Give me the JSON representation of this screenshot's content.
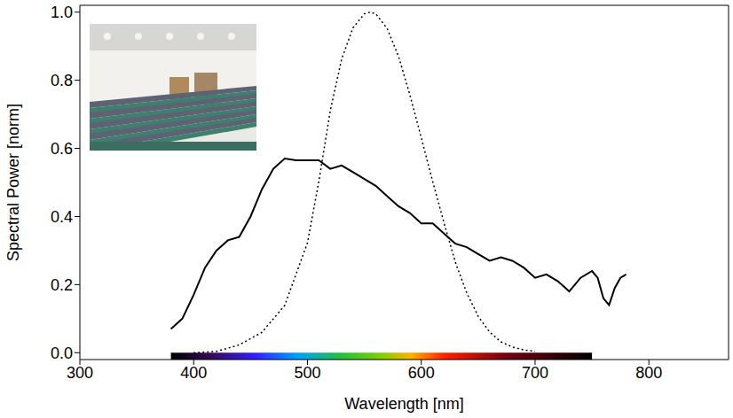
{
  "chart_data": {
    "type": "line",
    "x_label": "Wavelength [nm]",
    "y_label": "Spectral Power [norm]",
    "series": [
      {
        "x": [
          380,
          390,
          400,
          410,
          420,
          430,
          440,
          450,
          460,
          470,
          480,
          490,
          500,
          510,
          520,
          530,
          540,
          550,
          560,
          570,
          580,
          590,
          600,
          610,
          620,
          630,
          640,
          650,
          660,
          670,
          680,
          690,
          700,
          710,
          720,
          730,
          740,
          750,
          755,
          760,
          765,
          770,
          775,
          780
        ],
        "values": [
          0.07,
          0.1,
          0.17,
          0.25,
          0.3,
          0.33,
          0.34,
          0.4,
          0.48,
          0.54,
          0.57,
          0.565,
          0.565,
          0.565,
          0.54,
          0.55,
          0.53,
          0.51,
          0.49,
          0.46,
          0.43,
          0.41,
          0.38,
          0.38,
          0.35,
          0.32,
          0.31,
          0.29,
          0.27,
          0.28,
          0.27,
          0.25,
          0.22,
          0.23,
          0.21,
          0.18,
          0.22,
          0.24,
          0.22,
          0.16,
          0.14,
          0.19,
          0.22,
          0.23
        ],
        "color": "#000000",
        "line_style": "solid"
      },
      {
        "x": [
          400,
          420,
          440,
          460,
          480,
          500,
          510,
          520,
          530,
          540,
          550,
          555,
          560,
          570,
          580,
          590,
          600,
          610,
          620,
          630,
          640,
          650,
          660,
          670,
          680,
          690,
          700
        ],
        "values": [
          0.0,
          0.004,
          0.023,
          0.06,
          0.139,
          0.323,
          0.503,
          0.71,
          0.862,
          0.954,
          0.995,
          1.0,
          0.995,
          0.952,
          0.87,
          0.757,
          0.631,
          0.503,
          0.381,
          0.265,
          0.175,
          0.107,
          0.061,
          0.032,
          0.017,
          0.008,
          0.004
        ],
        "color": "#000000",
        "line_style": "dotted"
      }
    ],
    "xlim": [
      300,
      870
    ],
    "xticks": [
      300,
      400,
      500,
      600,
      700,
      800
    ],
    "ylim": [
      -0.02,
      1.02
    ],
    "yticks": [
      {
        "value": 0,
        "label": "0.0"
      },
      {
        "value": 0.2,
        "label": "0.2"
      },
      {
        "value": 0.4,
        "label": "0.4"
      },
      {
        "value": 0.6,
        "label": "0.6"
      },
      {
        "value": 0.8,
        "label": "0.8"
      },
      {
        "value": 1.0,
        "label": "1.0"
      }
    ],
    "spectrum_bar": [
      380,
      750
    ]
  }
}
